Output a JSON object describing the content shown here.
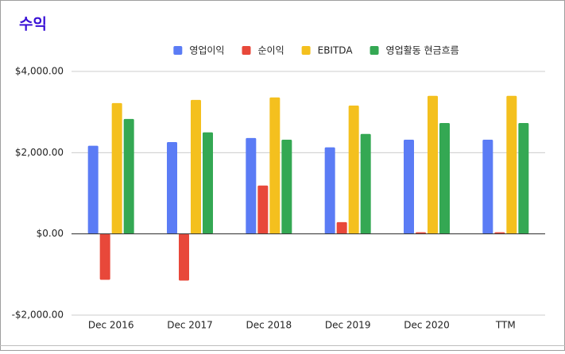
{
  "chart_data": {
    "type": "bar",
    "title": "수익",
    "categories": [
      "Dec 2016",
      "Dec 2017",
      "Dec 2018",
      "Dec 2019",
      "Dec 2020",
      "TTM"
    ],
    "series": [
      {
        "name": "영업이익",
        "color": "#5b7cf5",
        "values": [
          2170,
          2260,
          2360,
          2130,
          2320,
          2320
        ]
      },
      {
        "name": "순이익",
        "color": "#e8483a",
        "values": [
          -1130,
          -1150,
          1190,
          290,
          40,
          40
        ]
      },
      {
        "name": "EBITDA",
        "color": "#f4c01e",
        "values": [
          3220,
          3300,
          3360,
          3160,
          3400,
          3400
        ]
      },
      {
        "name": "영업활동 현금흐름",
        "color": "#34a853",
        "values": [
          2830,
          2500,
          2320,
          2460,
          2730,
          2730
        ]
      }
    ],
    "ylim": [
      -2000,
      4000
    ],
    "yticks": [
      {
        "value": -2000,
        "label": "-$2,000.00"
      },
      {
        "value": 0,
        "label": "$0.00"
      },
      {
        "value": 2000,
        "label": "$2,000.00"
      },
      {
        "value": 4000,
        "label": "$4,000.00"
      }
    ],
    "grid": true,
    "legend": "top"
  }
}
